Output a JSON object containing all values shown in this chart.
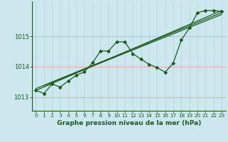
{
  "xlabel": "Graphe pression niveau de la mer (hPa)",
  "background_color": "#cce8ee",
  "line_color": "#1a5c1a",
  "xlim": [
    -0.5,
    23.5
  ],
  "ylim": [
    1012.55,
    1016.15
  ],
  "yticks": [
    1013,
    1014,
    1015
  ],
  "xticks": [
    0,
    1,
    2,
    3,
    4,
    5,
    6,
    7,
    8,
    9,
    10,
    11,
    12,
    13,
    14,
    15,
    16,
    17,
    18,
    19,
    20,
    21,
    22,
    23
  ],
  "main_series": [
    [
      0,
      1013.22
    ],
    [
      1,
      1013.12
    ],
    [
      2,
      1013.43
    ],
    [
      3,
      1013.33
    ],
    [
      4,
      1013.53
    ],
    [
      5,
      1013.72
    ],
    [
      6,
      1013.83
    ],
    [
      7,
      1014.13
    ],
    [
      8,
      1014.52
    ],
    [
      9,
      1014.52
    ],
    [
      10,
      1014.82
    ],
    [
      11,
      1014.82
    ],
    [
      12,
      1014.43
    ],
    [
      13,
      1014.25
    ],
    [
      14,
      1014.08
    ],
    [
      15,
      1013.97
    ],
    [
      16,
      1013.82
    ],
    [
      17,
      1014.12
    ],
    [
      18,
      1014.88
    ],
    [
      19,
      1015.28
    ],
    [
      20,
      1015.78
    ],
    [
      21,
      1015.85
    ],
    [
      22,
      1015.85
    ],
    [
      23,
      1015.82
    ]
  ],
  "trend_lines": [
    [
      [
        0,
        1013.22
      ],
      [
        23,
        1015.85
      ]
    ],
    [
      [
        0,
        1013.28
      ],
      [
        23,
        1015.78
      ]
    ],
    [
      [
        1,
        1013.38
      ],
      [
        23,
        1015.72
      ]
    ]
  ],
  "hgrid_color": "#e8b0b0",
  "vgrid_color": "#b8d8dc"
}
